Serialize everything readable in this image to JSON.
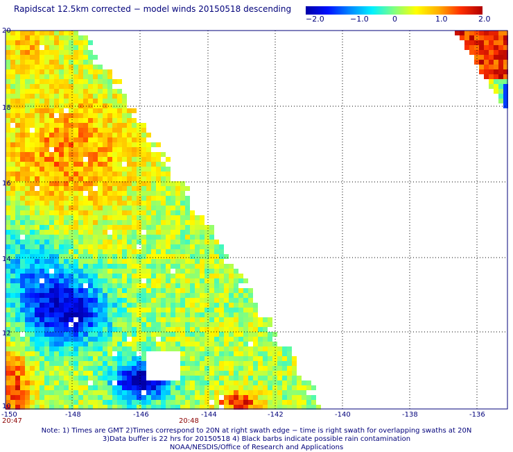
{
  "header": {
    "title": "Rapidscat 12.5km corrected − model winds 20150518 descending"
  },
  "colorbar": {
    "labels": [
      "−2.0",
      "−1.0",
      "0",
      "1.0",
      "2.0"
    ]
  },
  "axes": {
    "y_ticks": [
      "20",
      "18",
      "16",
      "14",
      "12",
      "10"
    ],
    "x_ticks": [
      "-150",
      "-148",
      "-146",
      "-144",
      "-142",
      "-140",
      "-138",
      "-136"
    ],
    "time_labels": [
      "20:47",
      "20:48"
    ]
  },
  "footer": {
    "line1": "Note: 1) Times are GMT 2)Times correspond to 20N at right swath edge − time is right swath for overlapping swaths at 20N",
    "line2": "3)Data buffer is 22 hrs for 20150518 4) Black barbs indicate possible rain contamination",
    "line3": "NOAA/NESDIS/Office of Research and Applications"
  }
}
